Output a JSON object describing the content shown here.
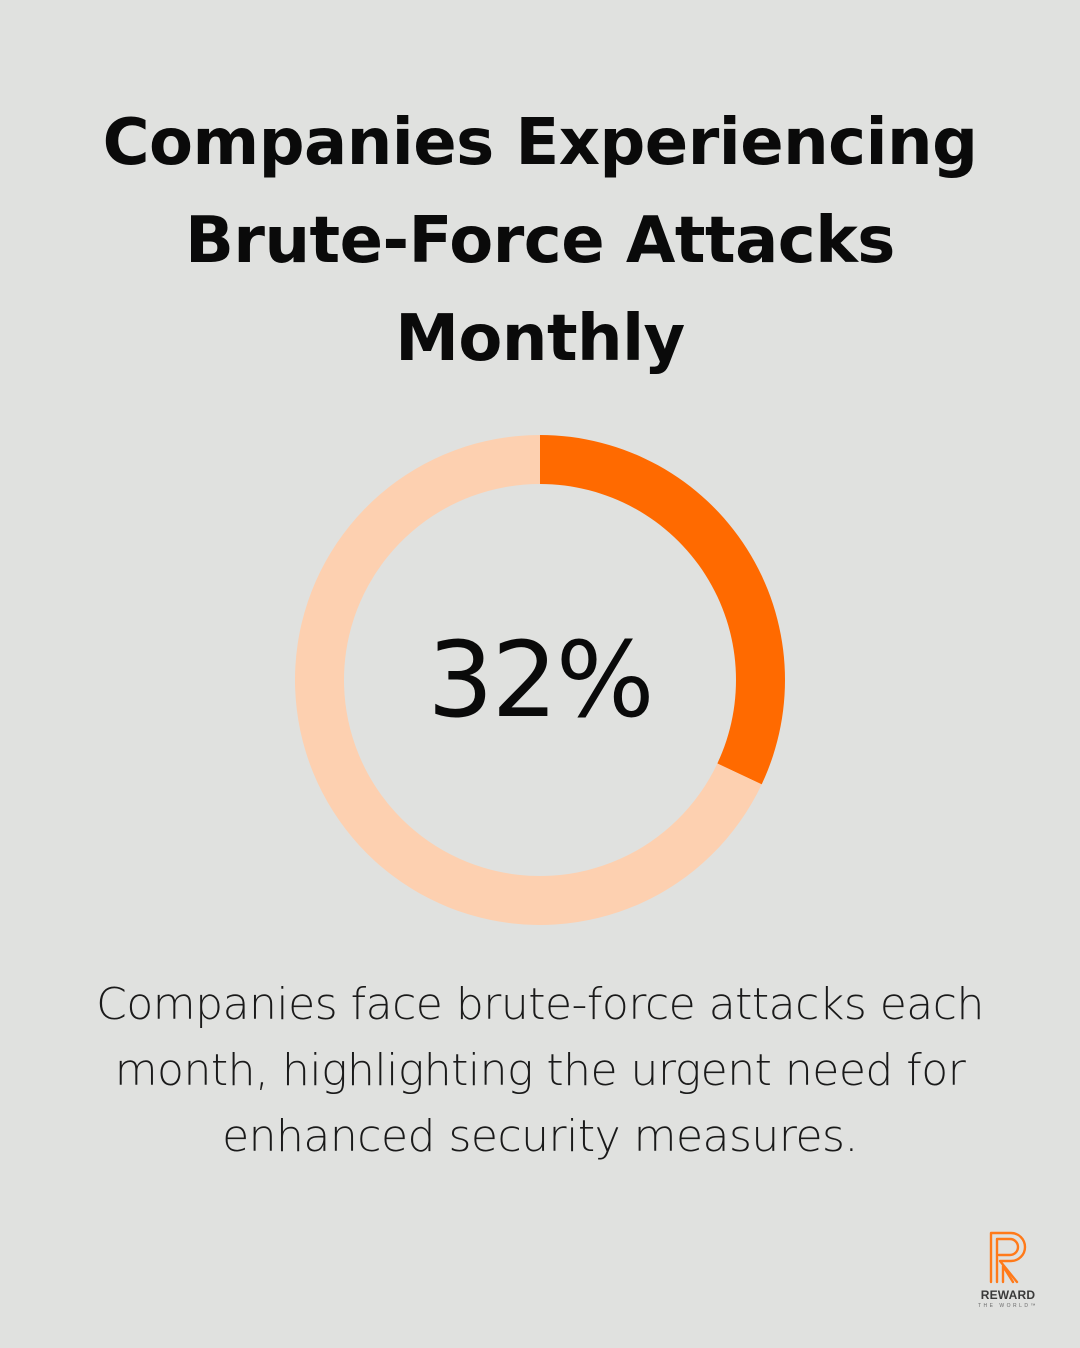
{
  "title": "Companies Experiencing Brute-Force Attacks Monthly",
  "center_label": "32%",
  "caption": "Companies face brute-force attacks each month, highlighting the urgent need for enhanced security measures.",
  "colors": {
    "background": "#e0e1df",
    "highlight": "#ff6a00",
    "remainder": "#fdd0b0"
  },
  "chart_data": {
    "type": "pie",
    "title": "Companies Experiencing Brute-Force Attacks Monthly",
    "style": "donut",
    "slices": [
      {
        "label": "",
        "value": 32,
        "color": "#ff6a00"
      },
      {
        "label": "",
        "value": 68,
        "color": "#fdd0b0"
      }
    ],
    "center_text": "32%",
    "unit": "%"
  },
  "logo": {
    "icon": "reward-r-logo",
    "wordmark": "REWARD",
    "tagline": "THE WORLD™"
  }
}
